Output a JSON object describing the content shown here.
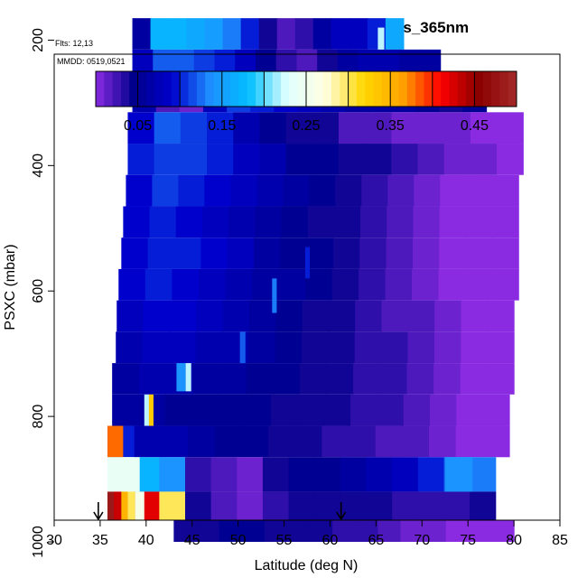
{
  "chart_data": {
    "type": "heatmap",
    "title": "ATOM4 Northeast_Pacific_2 MS_Abs_365nm",
    "flights_text": "Flts: 12,13",
    "dates_text": "MMDD: 0519,0521",
    "xlabel": "Latitude (deg N)",
    "ylabel": "PSXC (mbar)",
    "xlim": [
      30,
      85
    ],
    "ylim": [
      1000,
      100
    ],
    "x_ticks": [
      "30",
      "35",
      "40",
      "45",
      "50",
      "55",
      "60",
      "65",
      "70",
      "75",
      "80",
      "85"
    ],
    "y_ticks": [
      "200",
      "400",
      "600",
      "800",
      "1000"
    ],
    "colorbar": {
      "range": [
        0.0,
        0.5
      ],
      "tick_labels": [
        "0.05",
        "0.15",
        "0.25",
        "0.35",
        "0.45"
      ],
      "stops": [
        "#8a2be2",
        "#00008b",
        "#0000cd",
        "#1e90ff",
        "#00bfff",
        "#e0ffff",
        "#ffffe0",
        "#ffd700",
        "#ffa500",
        "#ff0000",
        "#8b0000",
        "#a52a2a"
      ]
    },
    "markers": [
      {
        "lat": 34.8,
        "label": "↓"
      },
      {
        "lat": 61.2,
        "label": "↓"
      }
    ],
    "layers": [
      {
        "p_top": 165,
        "p_bot": 215,
        "lat_start": 38.5,
        "lat_end": 68,
        "values": [
          0.06,
          0.17,
          0.17,
          0.16,
          0.15,
          0.13,
          0.1,
          0.04,
          0.02,
          0.03,
          0.06,
          0.08,
          0.08,
          0.1,
          0.16
        ]
      },
      {
        "p_top": 215,
        "p_bot": 265,
        "lat_start": 38.5,
        "lat_end": 72,
        "values": [
          0.08,
          0.12,
          0.12,
          0.11,
          0.1,
          0.08,
          0.05,
          0.03,
          0.02,
          0.04,
          0.06,
          0.07,
          0.07,
          0.06,
          0.06
        ]
      },
      {
        "p_top": 265,
        "p_bot": 315,
        "lat_start": 38.5,
        "lat_end": 77,
        "values": [
          0.07,
          0.02,
          0.01,
          0.08,
          0.11,
          0.1,
          0.09,
          0.08,
          0.07,
          0.06,
          0.06,
          0.06,
          0.05,
          0.04,
          0.05
        ]
      },
      {
        "p_top": 315,
        "p_bot": 365,
        "lat_start": 38,
        "lat_end": 81,
        "values": [
          0.09,
          0.12,
          0.11,
          0.1,
          0.07,
          0.05,
          0.04,
          0.04,
          0.02,
          0.02,
          0.01,
          0.01,
          0.01,
          0.0,
          0.0
        ]
      },
      {
        "p_top": 365,
        "p_bot": 415,
        "lat_start": 38,
        "lat_end": 81,
        "values": [
          0.1,
          0.11,
          0.11,
          0.1,
          0.08,
          0.07,
          0.05,
          0.05,
          0.04,
          0.04,
          0.03,
          0.02,
          0.01,
          0.01,
          0.0
        ]
      },
      {
        "p_top": 415,
        "p_bot": 465,
        "lat_start": 37.8,
        "lat_end": 80.5,
        "values": [
          0.09,
          0.11,
          0.1,
          0.09,
          0.08,
          0.07,
          0.06,
          0.05,
          0.04,
          0.03,
          0.02,
          0.01,
          0.0,
          0.0,
          0.0
        ]
      },
      {
        "p_top": 465,
        "p_bot": 515,
        "lat_start": 37.5,
        "lat_end": 80.5,
        "values": [
          0.09,
          0.1,
          0.09,
          0.08,
          0.07,
          0.06,
          0.05,
          0.04,
          0.04,
          0.03,
          0.02,
          0.01,
          0.0,
          0.0,
          0.0
        ]
      },
      {
        "p_top": 515,
        "p_bot": 565,
        "lat_start": 37.3,
        "lat_end": 80.5,
        "values": [
          0.09,
          0.1,
          0.1,
          0.09,
          0.08,
          0.06,
          0.05,
          0.05,
          0.04,
          0.03,
          0.02,
          0.01,
          0.0,
          0.0,
          0.0
        ]
      },
      {
        "p_top": 565,
        "p_bot": 615,
        "lat_start": 37,
        "lat_end": 80.5,
        "values": [
          0.09,
          0.1,
          0.09,
          0.08,
          0.07,
          0.06,
          0.06,
          0.05,
          0.04,
          0.03,
          0.02,
          0.01,
          0.0,
          0.0,
          0.0
        ]
      },
      {
        "p_top": 615,
        "p_bot": 665,
        "lat_start": 36.8,
        "lat_end": 80,
        "values": [
          0.08,
          0.09,
          0.09,
          0.08,
          0.07,
          0.06,
          0.05,
          0.04,
          0.04,
          0.03,
          0.02,
          0.02,
          0.01,
          0.0,
          0.0
        ]
      },
      {
        "p_top": 665,
        "p_bot": 715,
        "lat_start": 36.7,
        "lat_end": 80,
        "values": [
          0.07,
          0.08,
          0.08,
          0.07,
          0.07,
          0.06,
          0.05,
          0.04,
          0.04,
          0.03,
          0.03,
          0.02,
          0.01,
          0.0,
          0.0
        ]
      },
      {
        "p_top": 715,
        "p_bot": 765,
        "lat_start": 36.3,
        "lat_end": 80,
        "values": [
          0.06,
          0.07,
          0.07,
          0.06,
          0.06,
          0.05,
          0.05,
          0.04,
          0.04,
          0.03,
          0.03,
          0.02,
          0.01,
          0.0,
          0.0
        ]
      },
      {
        "p_top": 765,
        "p_bot": 815,
        "lat_start": 36.3,
        "lat_end": 79.5,
        "values": [
          0.06,
          0.06,
          0.05,
          0.05,
          0.05,
          0.05,
          0.04,
          0.04,
          0.04,
          0.03,
          0.03,
          0.02,
          0.01,
          0.0,
          0.0
        ]
      },
      {
        "p_top": 815,
        "p_bot": 865,
        "lat_start": 35.8,
        "lat_end": 79.5,
        "values": [
          0.1,
          0.07,
          0.07,
          0.06,
          0.05,
          0.05,
          0.04,
          0.04,
          0.03,
          0.03,
          0.02,
          0.02,
          0.01,
          0.0,
          0.0
        ]
      },
      {
        "p_top": 865,
        "p_bot": 920,
        "lat_start": 35.8,
        "lat_end": 78,
        "values": [
          0.25,
          0.17,
          0.14,
          0.03,
          0.02,
          0.01,
          0.04,
          0.05,
          0.05,
          0.06,
          0.07,
          0.08,
          0.1,
          0.12,
          0.13
        ]
      },
      {
        "p_top": 920,
        "p_bot": 965,
        "lat_start": 35.8,
        "lat_end": 78,
        "values": [
          0.48,
          0.42,
          0.3,
          0.04,
          0.02,
          0.01,
          0.03,
          0.04,
          0.04,
          0.04,
          0.04,
          0.03,
          0.03,
          0.03,
          0.04
        ]
      },
      {
        "p_top": 965,
        "p_bot": 1000,
        "lat_start": 43,
        "lat_end": 80,
        "values": [
          0.04,
          0.04,
          0.05,
          0.05,
          0.04,
          0.04,
          0.04,
          0.03,
          0.03,
          0.02,
          0.01,
          0.01,
          0.0,
          0.0,
          0.0
        ]
      }
    ],
    "patches": [
      {
        "lat0": 35.8,
        "lat1": 37.5,
        "p0": 815,
        "p1": 865,
        "value": 0.38
      },
      {
        "lat0": 39.8,
        "lat1": 40.4,
        "p0": 765,
        "p1": 815,
        "value": 0.22
      },
      {
        "lat0": 40.3,
        "lat1": 40.8,
        "p0": 765,
        "p1": 815,
        "value": 0.33
      },
      {
        "lat0": 43.3,
        "lat1": 44.3,
        "p0": 715,
        "p1": 760,
        "value": 0.14
      },
      {
        "lat0": 44.3,
        "lat1": 44.9,
        "p0": 715,
        "p1": 760,
        "value": 0.22
      },
      {
        "lat0": 50.2,
        "lat1": 50.8,
        "p0": 665,
        "p1": 715,
        "value": 0.12
      },
      {
        "lat0": 53.7,
        "lat1": 54.2,
        "p0": 580,
        "p1": 635,
        "value": 0.13
      },
      {
        "lat0": 57.3,
        "lat1": 57.8,
        "p0": 530,
        "p1": 580,
        "value": 0.1
      },
      {
        "lat0": 65.2,
        "lat1": 65.9,
        "p0": 180,
        "p1": 215,
        "value": 0.22
      },
      {
        "lat0": 35.8,
        "lat1": 39.3,
        "p0": 865,
        "p1": 920,
        "value": 0.24
      },
      {
        "lat0": 35.8,
        "lat1": 36.5,
        "p0": 920,
        "p1": 965,
        "value": 0.48
      },
      {
        "lat0": 36.5,
        "lat1": 37.3,
        "p0": 920,
        "p1": 965,
        "value": 0.43
      },
      {
        "lat0": 37.3,
        "lat1": 38.0,
        "p0": 920,
        "p1": 965,
        "value": 0.35
      },
      {
        "lat0": 38.0,
        "lat1": 38.8,
        "p0": 920,
        "p1": 965,
        "value": 0.3
      },
      {
        "lat0": 38.8,
        "lat1": 39.8,
        "p0": 920,
        "p1": 965,
        "value": 0.26
      },
      {
        "lat0": 72.5,
        "lat1": 75.5,
        "p0": 865,
        "p1": 920,
        "value": 0.14
      }
    ]
  }
}
